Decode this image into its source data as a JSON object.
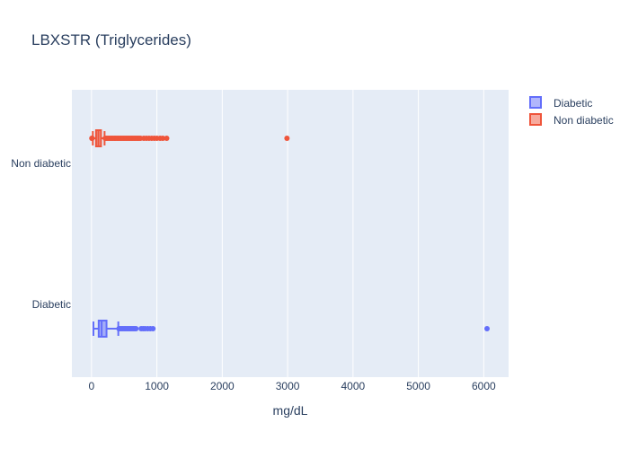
{
  "chart_data": {
    "type": "box",
    "orientation": "horizontal",
    "title": "LBXSTR (Triglycerides)",
    "xlabel": "mg/dL",
    "ylabel": "",
    "xlim": [
      -300,
      6380
    ],
    "x_ticks": [
      0,
      1000,
      2000,
      3000,
      4000,
      5000,
      6000
    ],
    "x_tick_labels": [
      "0",
      "1000",
      "2000",
      "3000",
      "4000",
      "5000",
      "6000"
    ],
    "categories": [
      "Diabetic",
      "Non diabetic"
    ],
    "grid": true,
    "legend": "top-right",
    "series": [
      {
        "name": "Diabetic",
        "color": "#636efa",
        "fill": "rgba(99,110,250,0.5)",
        "min": 30,
        "q1": 110,
        "median": 155,
        "q3": 230,
        "max": 410,
        "outliers": [
          420,
          440,
          460,
          480,
          500,
          520,
          540,
          560,
          580,
          600,
          620,
          640,
          660,
          680,
          760,
          790,
          820,
          860,
          900,
          940,
          6050
        ]
      },
      {
        "name": "Non diabetic",
        "color": "#ef553b",
        "fill": "rgba(239,85,59,0.5)",
        "min": 20,
        "q1": 70,
        "median": 105,
        "q3": 145,
        "max": 200,
        "outliers": [
          5,
          10,
          210,
          230,
          250,
          270,
          290,
          310,
          330,
          350,
          370,
          390,
          410,
          430,
          450,
          470,
          490,
          510,
          530,
          550,
          570,
          590,
          610,
          630,
          650,
          670,
          690,
          710,
          730,
          750,
          800,
          840,
          880,
          920,
          960,
          1000,
          1050,
          1090,
          1150,
          2990
        ]
      }
    ]
  }
}
